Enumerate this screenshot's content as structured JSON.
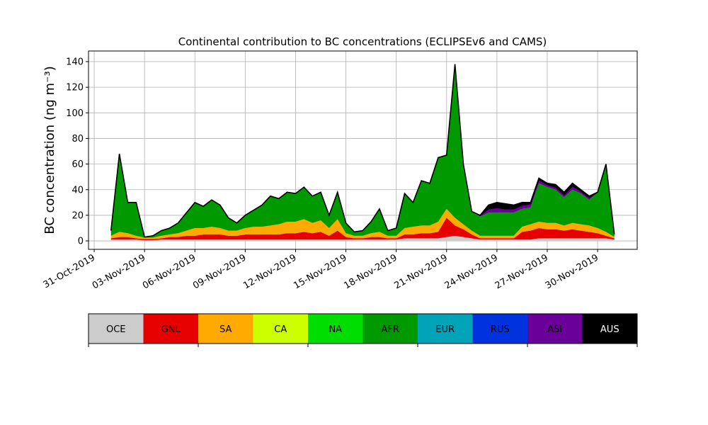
{
  "chart_data": {
    "type": "stacked_area",
    "title": "Continental contribution to BC concentrations (ECLIPSEv6 and CAMS)",
    "y_label": "BC concentration (ng m⁻³)",
    "grid": true,
    "xlim": [
      -0.34,
      32.36
    ],
    "ylim": [
      -6.6,
      148.3
    ],
    "yticks": [
      0,
      20,
      40,
      60,
      80,
      100,
      120,
      140
    ],
    "xticks": [
      {
        "value": 0,
        "label": "31-Oct-2019"
      },
      {
        "value": 3,
        "label": "03-Nov-2019"
      },
      {
        "value": 6,
        "label": "06-Nov-2019"
      },
      {
        "value": 9,
        "label": "09-Nov-2019"
      },
      {
        "value": 12,
        "label": "12-Nov-2019"
      },
      {
        "value": 15,
        "label": "15-Nov-2019"
      },
      {
        "value": 18,
        "label": "18-Nov-2019"
      },
      {
        "value": 21,
        "label": "21-Nov-2019"
      },
      {
        "value": 24,
        "label": "24-Nov-2019"
      },
      {
        "value": 27,
        "label": "27-Nov-2019"
      },
      {
        "value": 30,
        "label": "30-Nov-2019"
      }
    ],
    "x": [
      1,
      1.5,
      2,
      2.5,
      3,
      3.5,
      4,
      4.5,
      5,
      5.5,
      6,
      6.5,
      7,
      7.5,
      8,
      8.5,
      9,
      9.5,
      10,
      10.5,
      11,
      11.5,
      12,
      12.5,
      13,
      13.5,
      14,
      14.5,
      15,
      15.5,
      16,
      16.5,
      17,
      17.5,
      18,
      18.5,
      19,
      19.5,
      20,
      20.5,
      21,
      21.5,
      22,
      22.5,
      23,
      23.5,
      24,
      24.5,
      25,
      25.5,
      26,
      26.5,
      27,
      27.5,
      28,
      28.5,
      29,
      29.5,
      30,
      30.5,
      31
    ],
    "series": [
      {
        "name": "OCE",
        "color": "#cccccc",
        "values": [
          1,
          1,
          1,
          1,
          0.5,
          0.5,
          1,
          1,
          1,
          1,
          1,
          1,
          1,
          1,
          1,
          1,
          1,
          1,
          1,
          1,
          1,
          1,
          1,
          1,
          1,
          1,
          1,
          1,
          1,
          1,
          1,
          1,
          1,
          1,
          1,
          2,
          2,
          2,
          2,
          2,
          3,
          4,
          3,
          2,
          1,
          1,
          1,
          1,
          1,
          1,
          1,
          2,
          2,
          2,
          2,
          2,
          2,
          2,
          2,
          2,
          1
        ]
      },
      {
        "name": "GNL",
        "color": "#e60000",
        "values": [
          1,
          2,
          2,
          1,
          1,
          1,
          1,
          2,
          2,
          3,
          3,
          4,
          4,
          4,
          3,
          3,
          4,
          4,
          4,
          4,
          4,
          5,
          5,
          6,
          5,
          6,
          3,
          7,
          2,
          1,
          1,
          2,
          2,
          1,
          1,
          3,
          3,
          4,
          4,
          5,
          15,
          8,
          6,
          3,
          1,
          1,
          1,
          1,
          1,
          6,
          7,
          8,
          7,
          7,
          6,
          7,
          6,
          5,
          4,
          2,
          1
        ]
      },
      {
        "name": "SA",
        "color": "#ffaa00",
        "values": [
          2,
          4,
          3,
          2,
          1,
          1,
          2,
          2,
          3,
          4,
          6,
          5,
          6,
          5,
          4,
          4,
          5,
          6,
          6,
          7,
          8,
          9,
          9,
          10,
          8,
          9,
          6,
          9,
          3,
          2,
          2,
          3,
          4,
          2,
          2,
          5,
          6,
          6,
          6,
          8,
          7,
          6,
          4,
          3,
          2,
          2,
          2,
          2,
          2,
          4,
          5,
          5,
          5,
          5,
          4,
          5,
          5,
          5,
          4,
          3,
          1
        ]
      },
      {
        "name": "CA",
        "color": "#ccff00",
        "values": [
          0,
          0,
          0,
          0,
          0,
          0,
          0,
          0,
          0,
          0,
          0,
          0,
          0,
          0,
          0,
          0,
          0,
          0,
          0,
          0,
          0,
          0,
          0,
          0,
          0,
          0,
          0,
          0,
          0,
          0,
          0,
          0,
          0,
          0,
          0,
          0,
          0,
          0,
          0,
          0,
          0,
          0,
          0,
          0,
          0,
          0,
          0,
          0,
          0,
          0,
          0,
          0,
          0,
          0,
          0,
          0,
          0,
          0,
          0,
          0,
          0
        ]
      },
      {
        "name": "NA",
        "color": "#00dd00",
        "values": [
          0,
          0,
          0,
          0,
          0,
          0,
          0,
          0,
          0,
          0,
          0,
          0,
          0,
          0,
          0,
          0,
          0,
          0,
          0,
          0,
          0,
          0,
          0,
          0,
          0,
          0,
          0,
          0,
          0,
          0,
          0,
          0,
          0,
          0,
          0,
          0,
          0,
          0,
          0,
          0,
          0,
          0,
          0,
          0,
          0,
          0,
          0,
          0,
          0,
          0,
          0,
          0,
          0,
          0,
          0,
          0,
          0,
          0,
          0,
          0,
          0
        ]
      },
      {
        "name": "AFR",
        "color": "#009900",
        "values": [
          4,
          61,
          24,
          26,
          0.5,
          1.5,
          4,
          5,
          8,
          14,
          20,
          17,
          21,
          18,
          10,
          6,
          10,
          13,
          17,
          23,
          20,
          23,
          22,
          25,
          21,
          22,
          10,
          21,
          8,
          3,
          4,
          9,
          18,
          4,
          6,
          27,
          19,
          35,
          33,
          50,
          42,
          120,
          47,
          15,
          15,
          18,
          18,
          18,
          18,
          14,
          13,
          30,
          28,
          26,
          22,
          26,
          24,
          20,
          28,
          53,
          2
        ]
      },
      {
        "name": "EUR",
        "color": "#00a3b8",
        "values": [
          0,
          0,
          0,
          0,
          0,
          0,
          0,
          0,
          0,
          0,
          0,
          0,
          0,
          0,
          0,
          0,
          0,
          0,
          0,
          0,
          0,
          0,
          0,
          0,
          0,
          0,
          0,
          0,
          0,
          0,
          0,
          0,
          0,
          0,
          0,
          0,
          0,
          0,
          0,
          0,
          0,
          0,
          0,
          0,
          0,
          0,
          0,
          0,
          0,
          0,
          0,
          0,
          0,
          0,
          0,
          0,
          0,
          0,
          0,
          0,
          0
        ]
      },
      {
        "name": "RUS",
        "color": "#0033dd",
        "values": [
          0,
          0,
          0,
          0,
          0,
          0,
          0,
          0,
          0,
          0,
          0,
          0,
          0,
          0,
          0,
          0,
          0,
          0,
          0,
          0,
          0,
          0,
          0,
          0,
          0,
          0,
          0,
          0,
          0,
          0,
          0,
          0,
          0,
          0,
          0,
          0,
          0,
          0,
          0,
          0,
          0,
          0,
          0,
          0,
          0,
          0,
          0,
          0,
          0,
          0,
          0,
          0,
          0,
          0,
          0,
          0,
          0,
          0,
          0,
          0,
          0
        ]
      },
      {
        "name": "ASI",
        "color": "#6a0099",
        "values": [
          0,
          0,
          0,
          0,
          0,
          0,
          0,
          0,
          0,
          0,
          0,
          0,
          0,
          0,
          0,
          0,
          0,
          0,
          0,
          0,
          0,
          0,
          0,
          0,
          0,
          0,
          0,
          0,
          0,
          0,
          0,
          0,
          0,
          0,
          0,
          0,
          0,
          0,
          0,
          0,
          0,
          0,
          0,
          0,
          1,
          3,
          4,
          3,
          3,
          3,
          3,
          3,
          2,
          2,
          2,
          3,
          2,
          2,
          0,
          0,
          0
        ]
      },
      {
        "name": "AUS",
        "color": "#000000",
        "values": [
          0,
          0,
          0,
          0,
          0,
          0,
          0,
          0,
          0,
          0,
          0,
          0,
          0,
          0,
          0,
          0,
          0,
          0,
          0,
          0,
          0,
          0,
          0,
          0,
          0,
          0,
          0,
          0,
          0,
          0,
          0,
          0,
          0,
          0,
          0,
          0,
          0,
          0,
          0,
          0,
          0,
          0,
          0,
          0,
          0,
          3,
          4,
          4,
          3,
          2,
          1,
          1,
          1,
          2,
          2,
          2,
          1,
          1,
          0,
          0,
          0
        ]
      }
    ]
  }
}
